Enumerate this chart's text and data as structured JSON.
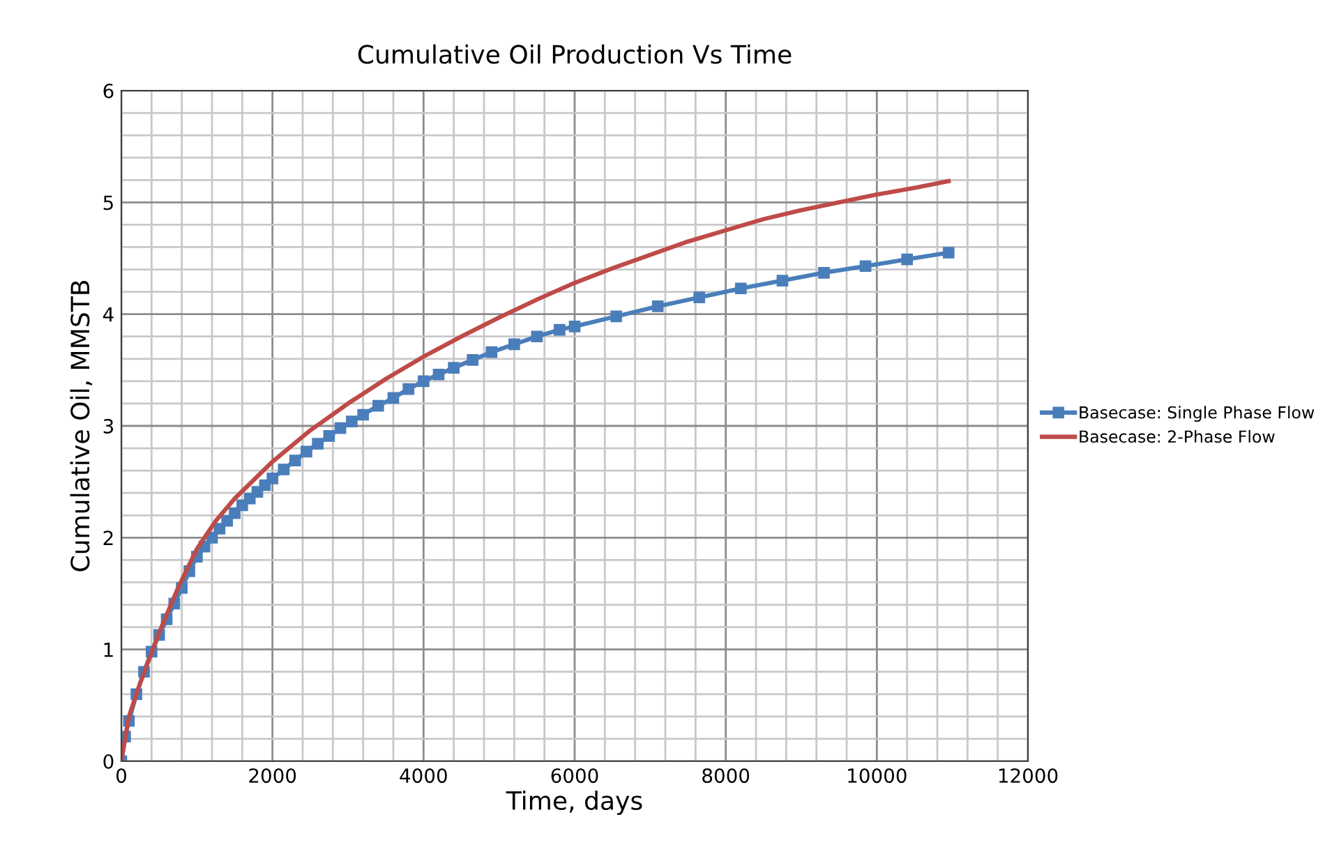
{
  "chart_data": {
    "type": "line",
    "title": "Cumulative Oil Production Vs Time",
    "xlabel": "Time, days",
    "ylabel": "Cumulative Oil, MMSTB",
    "xlim": [
      0,
      12000
    ],
    "ylim": [
      0,
      6
    ],
    "xticks": [
      0,
      {
        "value": 400,
        "label": null
      },
      {
        "value": 800,
        "label": null
      },
      {
        "value": 1200,
        "label": null
      },
      {
        "value": 1600,
        "label": null
      },
      2000,
      {
        "value": 2400,
        "label": null
      },
      {
        "value": 2800,
        "label": null
      },
      {
        "value": 3200,
        "label": null
      },
      {
        "value": 3600,
        "label": null
      },
      4000,
      {
        "value": 4400,
        "label": null
      },
      {
        "value": 4800,
        "label": null
      },
      {
        "value": 5200,
        "label": null
      },
      {
        "value": 5600,
        "label": null
      },
      6000,
      {
        "value": 6400,
        "label": null
      },
      {
        "value": 6800,
        "label": null
      },
      {
        "value": 7200,
        "label": null
      },
      {
        "value": 7600,
        "label": null
      },
      8000,
      {
        "value": 8400,
        "label": null
      },
      {
        "value": 8800,
        "label": null
      },
      {
        "value": 9200,
        "label": null
      },
      {
        "value": 9600,
        "label": null
      },
      10000,
      {
        "value": 10400,
        "label": null
      },
      {
        "value": 10800,
        "label": null
      },
      {
        "value": 11200,
        "label": null
      },
      {
        "value": 11600,
        "label": null
      },
      12000
    ],
    "yticks": [
      0,
      {
        "value": 0.2,
        "label": null
      },
      {
        "value": 0.4,
        "label": null
      },
      {
        "value": 0.6,
        "label": null
      },
      {
        "value": 0.8,
        "label": null
      },
      1,
      {
        "value": 1.2,
        "label": null
      },
      {
        "value": 1.4,
        "label": null
      },
      {
        "value": 1.6,
        "label": null
      },
      {
        "value": 1.8,
        "label": null
      },
      2,
      {
        "value": 2.2,
        "label": null
      },
      {
        "value": 2.4,
        "label": null
      },
      {
        "value": 2.6,
        "label": null
      },
      {
        "value": 2.8,
        "label": null
      },
      3,
      {
        "value": 3.2,
        "label": null
      },
      {
        "value": 3.4,
        "label": null
      },
      {
        "value": 3.6,
        "label": null
      },
      {
        "value": 3.8,
        "label": null
      },
      4,
      {
        "value": 4.2,
        "label": null
      },
      {
        "value": 4.4,
        "label": null
      },
      {
        "value": 4.6,
        "label": null
      },
      {
        "value": 4.8,
        "label": null
      },
      5,
      {
        "value": 5.2,
        "label": null
      },
      {
        "value": 5.4,
        "label": null
      },
      {
        "value": 5.6,
        "label": null
      },
      {
        "value": 5.8,
        "label": null
      },
      6
    ],
    "grid": true,
    "legend": "right",
    "series": [
      {
        "name": "Basecase: Single Phase Flow",
        "color": "#4a7ebb",
        "marker": "square",
        "x": [
          0,
          50,
          100,
          200,
          300,
          400,
          500,
          600,
          700,
          800,
          900,
          1000,
          1100,
          1200,
          1300,
          1400,
          1500,
          1600,
          1700,
          1800,
          1900,
          2000,
          2150,
          2300,
          2450,
          2600,
          2750,
          2900,
          3050,
          3200,
          3400,
          3600,
          3800,
          4000,
          4200,
          4400,
          4650,
          4900,
          5200,
          5500,
          5800,
          6000,
          6550,
          7100,
          7650,
          8200,
          8750,
          9300,
          9850,
          10400,
          10950
        ],
        "values": [
          0,
          0.22,
          0.36,
          0.6,
          0.8,
          0.98,
          1.13,
          1.27,
          1.41,
          1.55,
          1.7,
          1.83,
          1.92,
          2.0,
          2.08,
          2.15,
          2.22,
          2.29,
          2.35,
          2.41,
          2.47,
          2.53,
          2.61,
          2.69,
          2.77,
          2.84,
          2.91,
          2.98,
          3.04,
          3.1,
          3.18,
          3.25,
          3.33,
          3.4,
          3.46,
          3.52,
          3.59,
          3.66,
          3.73,
          3.8,
          3.86,
          3.89,
          3.98,
          4.07,
          4.15,
          4.23,
          4.3,
          4.37,
          4.43,
          4.49,
          4.55
        ]
      },
      {
        "name": "Basecase: 2-Phase Flow",
        "color": "#be4b48",
        "x": [
          0,
          100,
          250,
          500,
          750,
          1000,
          1250,
          1500,
          2000,
          2500,
          3000,
          3500,
          4000,
          4500,
          5000,
          5500,
          6000,
          6500,
          7000,
          7500,
          8000,
          8500,
          9000,
          9500,
          10000,
          10500,
          10950
        ],
        "values": [
          0,
          0.4,
          0.7,
          1.15,
          1.55,
          1.9,
          2.15,
          2.35,
          2.68,
          2.96,
          3.2,
          3.42,
          3.62,
          3.8,
          3.97,
          4.13,
          4.28,
          4.41,
          4.53,
          4.65,
          4.75,
          4.85,
          4.93,
          5.0,
          5.07,
          5.13,
          5.19
        ]
      }
    ]
  }
}
